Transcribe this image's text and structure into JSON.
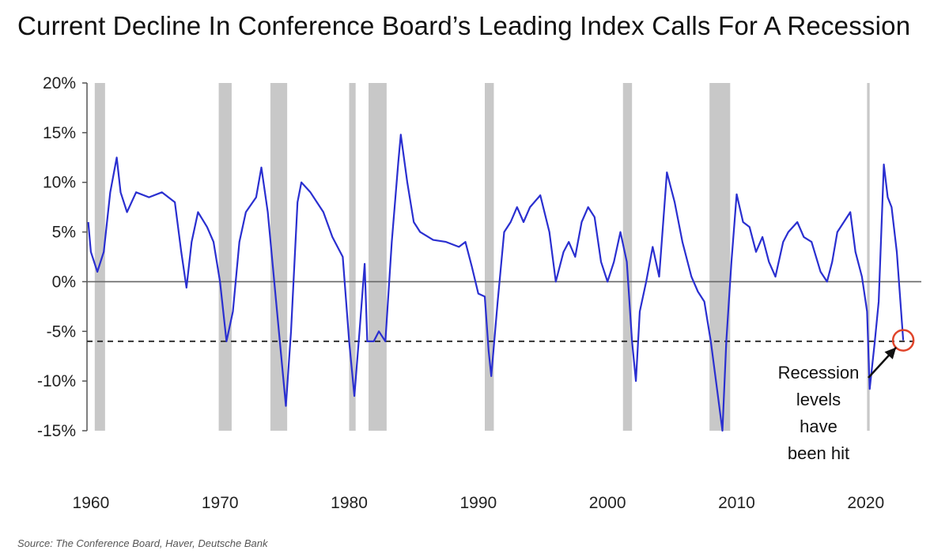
{
  "title": "Current Decline In Conference Board’s Leading Index Calls For A Recession",
  "source": "Source: The Conference Board, Haver, Deutsche Bank",
  "annotation": {
    "lines": [
      "Recession",
      "levels",
      "have",
      "been hit"
    ]
  },
  "colors": {
    "series": "#2a2fd0",
    "recession_band": "#c8c8c8",
    "zero_line": "#666666",
    "threshold_line": "#333333",
    "highlight_circle": "#e0442a",
    "arrow": "#111111"
  },
  "chart_data": {
    "type": "line",
    "title": "Current Decline In Conference Board’s Leading Index Calls For A Recession",
    "xlabel": "",
    "ylabel": "",
    "xlim": [
      1959.7,
      2024.3
    ],
    "ylim": [
      -15,
      20
    ],
    "x_ticks": [
      1960,
      1970,
      1980,
      1990,
      2000,
      2010,
      2020
    ],
    "x_tick_labels": [
      "1960",
      "1970",
      "1980",
      "1990",
      "2000",
      "2010",
      "2020"
    ],
    "y_ticks": [
      20,
      15,
      10,
      5,
      0,
      -5,
      -10,
      -15
    ],
    "y_tick_labels": [
      "20%",
      "15%",
      "10%",
      "5%",
      "0%",
      "-5%",
      "-10%",
      "-15%"
    ],
    "grid": false,
    "legend": "none",
    "threshold": -6,
    "recessions": [
      [
        1960.3,
        1961.1
      ],
      [
        1969.9,
        1970.9
      ],
      [
        1973.9,
        1975.2
      ],
      [
        1980.0,
        1980.5
      ],
      [
        1981.5,
        1982.9
      ],
      [
        1990.5,
        1991.2
      ],
      [
        2001.2,
        2001.9
      ],
      [
        2007.9,
        2009.5
      ],
      [
        2020.1,
        2020.3
      ]
    ],
    "highlight_point": {
      "x": 2022.9,
      "y": -5.9
    },
    "series": [
      {
        "values": [
          [
            1959.8,
            6
          ],
          [
            1960.0,
            3
          ],
          [
            1960.5,
            1
          ],
          [
            1961.0,
            3
          ],
          [
            1961.5,
            9
          ],
          [
            1962.0,
            12.5
          ],
          [
            1962.3,
            9
          ],
          [
            1962.8,
            7
          ],
          [
            1963.5,
            9
          ],
          [
            1964.5,
            8.5
          ],
          [
            1965.5,
            9
          ],
          [
            1966.5,
            8
          ],
          [
            1967.0,
            3
          ],
          [
            1967.4,
            -0.6
          ],
          [
            1967.8,
            4
          ],
          [
            1968.3,
            7
          ],
          [
            1969.0,
            5.5
          ],
          [
            1969.5,
            4
          ],
          [
            1970.0,
            0
          ],
          [
            1970.5,
            -6
          ],
          [
            1971.0,
            -3
          ],
          [
            1971.5,
            4
          ],
          [
            1972.0,
            7
          ],
          [
            1972.8,
            8.5
          ],
          [
            1973.2,
            11.5
          ],
          [
            1973.7,
            7
          ],
          [
            1974.2,
            0
          ],
          [
            1974.7,
            -7
          ],
          [
            1975.1,
            -12.5
          ],
          [
            1975.5,
            -5
          ],
          [
            1976.0,
            8
          ],
          [
            1976.3,
            10
          ],
          [
            1977.0,
            9
          ],
          [
            1978.0,
            7
          ],
          [
            1978.7,
            4.5
          ],
          [
            1979.5,
            2.5
          ],
          [
            1980.0,
            -6
          ],
          [
            1980.4,
            -11.5
          ],
          [
            1980.8,
            -5
          ],
          [
            1981.2,
            1.8
          ],
          [
            1981.4,
            -6
          ],
          [
            1981.9,
            -6
          ],
          [
            1982.3,
            -5
          ],
          [
            1982.8,
            -6
          ],
          [
            1983.3,
            4
          ],
          [
            1983.8,
            12
          ],
          [
            1984.0,
            14.8
          ],
          [
            1984.5,
            10
          ],
          [
            1985.0,
            6
          ],
          [
            1985.5,
            5
          ],
          [
            1986.5,
            4.2
          ],
          [
            1987.5,
            4
          ],
          [
            1988.5,
            3.5
          ],
          [
            1989.0,
            4
          ],
          [
            1989.5,
            1.5
          ],
          [
            1990.0,
            -1.2
          ],
          [
            1990.5,
            -1.5
          ],
          [
            1990.8,
            -7
          ],
          [
            1991.0,
            -9.5
          ],
          [
            1991.5,
            -2
          ],
          [
            1992.0,
            5
          ],
          [
            1992.5,
            6
          ],
          [
            1993.0,
            7.5
          ],
          [
            1993.5,
            6
          ],
          [
            1994.0,
            7.5
          ],
          [
            1994.8,
            8.7
          ],
          [
            1995.5,
            5
          ],
          [
            1996.0,
            0
          ],
          [
            1996.6,
            3
          ],
          [
            1997.0,
            4
          ],
          [
            1997.5,
            2.5
          ],
          [
            1998.0,
            6
          ],
          [
            1998.5,
            7.5
          ],
          [
            1999.0,
            6.5
          ],
          [
            1999.5,
            2
          ],
          [
            2000.0,
            0
          ],
          [
            2000.5,
            2
          ],
          [
            2001.0,
            5
          ],
          [
            2001.5,
            2
          ],
          [
            2001.9,
            -6
          ],
          [
            2002.2,
            -10
          ],
          [
            2002.5,
            -3
          ],
          [
            2003.0,
            0
          ],
          [
            2003.5,
            3.5
          ],
          [
            2004.0,
            0.5
          ],
          [
            2004.6,
            11
          ],
          [
            2005.2,
            8
          ],
          [
            2005.8,
            4
          ],
          [
            2006.5,
            0.5
          ],
          [
            2007.0,
            -1
          ],
          [
            2007.5,
            -2
          ],
          [
            2008.0,
            -6
          ],
          [
            2008.5,
            -11
          ],
          [
            2008.9,
            -15
          ],
          [
            2009.2,
            -6
          ],
          [
            2009.6,
            2
          ],
          [
            2010.0,
            8.8
          ],
          [
            2010.5,
            6
          ],
          [
            2011.0,
            5.5
          ],
          [
            2011.5,
            3
          ],
          [
            2012.0,
            4.5
          ],
          [
            2012.5,
            2
          ],
          [
            2013.0,
            0.5
          ],
          [
            2013.6,
            4
          ],
          [
            2014.0,
            5
          ],
          [
            2014.7,
            6
          ],
          [
            2015.2,
            4.5
          ],
          [
            2015.8,
            4
          ],
          [
            2016.5,
            1
          ],
          [
            2017.0,
            0
          ],
          [
            2017.4,
            2
          ],
          [
            2017.8,
            5
          ],
          [
            2018.3,
            6
          ],
          [
            2018.8,
            7
          ],
          [
            2019.2,
            3
          ],
          [
            2019.7,
            0.5
          ],
          [
            2020.1,
            -3
          ],
          [
            2020.3,
            -10.8
          ],
          [
            2020.7,
            -6
          ],
          [
            2021.0,
            -2
          ],
          [
            2021.2,
            5
          ],
          [
            2021.4,
            11.8
          ],
          [
            2021.7,
            8.5
          ],
          [
            2022.0,
            7.5
          ],
          [
            2022.4,
            3
          ],
          [
            2022.9,
            -5.9
          ]
        ]
      }
    ]
  }
}
